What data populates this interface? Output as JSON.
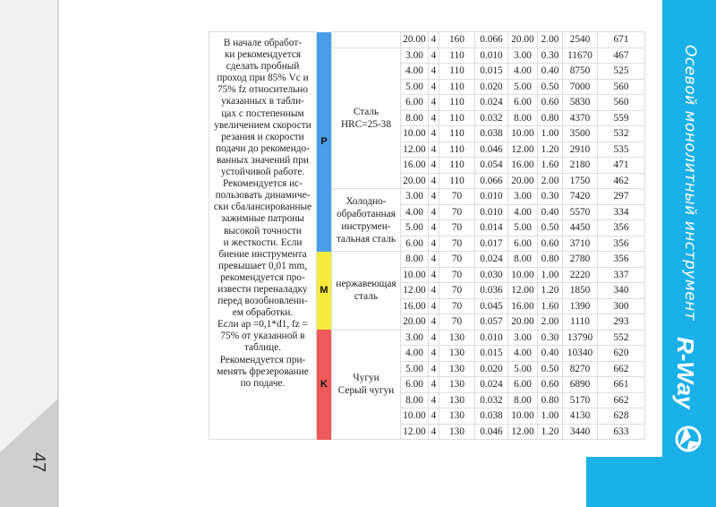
{
  "page_number": "47",
  "side_title": "Осевой монолитный инструмент",
  "brand": "R-Way",
  "note_lines": [
    "В начале обработ-",
    "ки рекомендуется",
    "сделать пробный",
    "проход при 85% Vc и",
    "75% fz относительно",
    "указанных в табли-",
    "цах с постепенным",
    "увеличением скорости",
    "резания и скорости",
    "подачи до рекомендо-",
    "ванных значений при",
    "устойчивой работе.",
    "Рекомендуется ис-",
    "пользовать динамиче-",
    "ски сбалансированные",
    "зажимные патроны",
    "высокой точности",
    "и жесткости. Если",
    "биение инструмента",
    "превышает 0,01 mm,",
    "рекомендуется про-",
    "извести переналадку",
    "перед возобновлени-",
    "ем обработки.",
    "Если ap =0,1*d1, fz =",
    "75% от указанной в",
    "таблице.",
    "Рекомендуется при-",
    "менять фрезерование",
    "по подаче."
  ],
  "bands": [
    {
      "label": "P",
      "color": "#4a9de8",
      "groups": [
        {
          "rows": [
            [
              "20.00",
              "4",
              "160",
              "0.066",
              "20.00",
              "2.00",
              "2540",
              "671"
            ]
          ]
        },
        {
          "material_lines": [
            "Сталь",
            "HRC=25-38"
          ],
          "rows": [
            [
              "3.00",
              "4",
              "110",
              "0.010",
              "3.00",
              "0.30",
              "11670",
              "467"
            ],
            [
              "4.00",
              "4",
              "110",
              "0.015",
              "4.00",
              "0.40",
              "8750",
              "525"
            ],
            [
              "5.00",
              "4",
              "110",
              "0.020",
              "5.00",
              "0.50",
              "7000",
              "560"
            ],
            [
              "6.00",
              "4",
              "110",
              "0.024",
              "6.00",
              "0.60",
              "5830",
              "560"
            ],
            [
              "8.00",
              "4",
              "110",
              "0.032",
              "8.00",
              "0.80",
              "4370",
              "559"
            ],
            [
              "10.00",
              "4",
              "110",
              "0.038",
              "10.00",
              "1.00",
              "3500",
              "532"
            ],
            [
              "12.00",
              "4",
              "110",
              "0.046",
              "12.00",
              "1.20",
              "2910",
              "535"
            ],
            [
              "16.00",
              "4",
              "110",
              "0.054",
              "16.00",
              "1.60",
              "2180",
              "471"
            ],
            [
              "20.00",
              "4",
              "110",
              "0.066",
              "20.00",
              "2.00",
              "1750",
              "462"
            ]
          ]
        },
        {
          "material_lines": [
            "Холодно-",
            "обработанная",
            "инструмен-",
            "тальная сталь"
          ],
          "rows": [
            [
              "3.00",
              "4",
              "70",
              "0.010",
              "3.00",
              "0.30",
              "7420",
              "297"
            ],
            [
              "4.00",
              "4",
              "70",
              "0.010",
              "4.00",
              "0.40",
              "5570",
              "334"
            ],
            [
              "5.00",
              "4",
              "70",
              "0.014",
              "5.00",
              "0.50",
              "4450",
              "356"
            ],
            [
              "6.00",
              "4",
              "70",
              "0.017",
              "6.00",
              "0.60",
              "3710",
              "356"
            ]
          ]
        }
      ]
    },
    {
      "label": "M",
      "color": "#f4ea3c",
      "groups": [
        {
          "material_lines": [
            "нержавеющая",
            "сталь"
          ],
          "rows": [
            [
              "8.00",
              "4",
              "70",
              "0.024",
              "8.00",
              "0.80",
              "2780",
              "356"
            ],
            [
              "10.00",
              "4",
              "70",
              "0.030",
              "10.00",
              "1.00",
              "2220",
              "337"
            ],
            [
              "12.00",
              "4",
              "70",
              "0.036",
              "12.00",
              "1.20",
              "1850",
              "340"
            ],
            [
              "16.00",
              "4",
              "70",
              "0.045",
              "16.00",
              "1.60",
              "1390",
              "300"
            ],
            [
              "20.00",
              "4",
              "70",
              "0.057",
              "20.00",
              "2.00",
              "1110",
              "293"
            ]
          ]
        }
      ]
    },
    {
      "label": "K",
      "color": "#ee5a5a",
      "groups": [
        {
          "material_lines": [
            "Чугун",
            "Серый чугун"
          ],
          "rows": [
            [
              "3.00",
              "4",
              "130",
              "0.010",
              "3.00",
              "0.30",
              "13790",
              "552"
            ],
            [
              "4.00",
              "4",
              "130",
              "0.015",
              "4.00",
              "0.40",
              "10340",
              "620"
            ],
            [
              "5.00",
              "4",
              "130",
              "0.020",
              "5.00",
              "0.50",
              "8270",
              "662"
            ],
            [
              "6.00",
              "4",
              "130",
              "0.024",
              "6.00",
              "0.60",
              "6890",
              "661"
            ],
            [
              "8.00",
              "4",
              "130",
              "0.032",
              "8.00",
              "0.80",
              "5170",
              "662"
            ],
            [
              "10.00",
              "4",
              "130",
              "0.038",
              "10.00",
              "1.00",
              "4130",
              "628"
            ],
            [
              "12.00",
              "4",
              "130",
              "0.046",
              "12.00",
              "1.20",
              "3440",
              "633"
            ]
          ]
        }
      ]
    }
  ]
}
